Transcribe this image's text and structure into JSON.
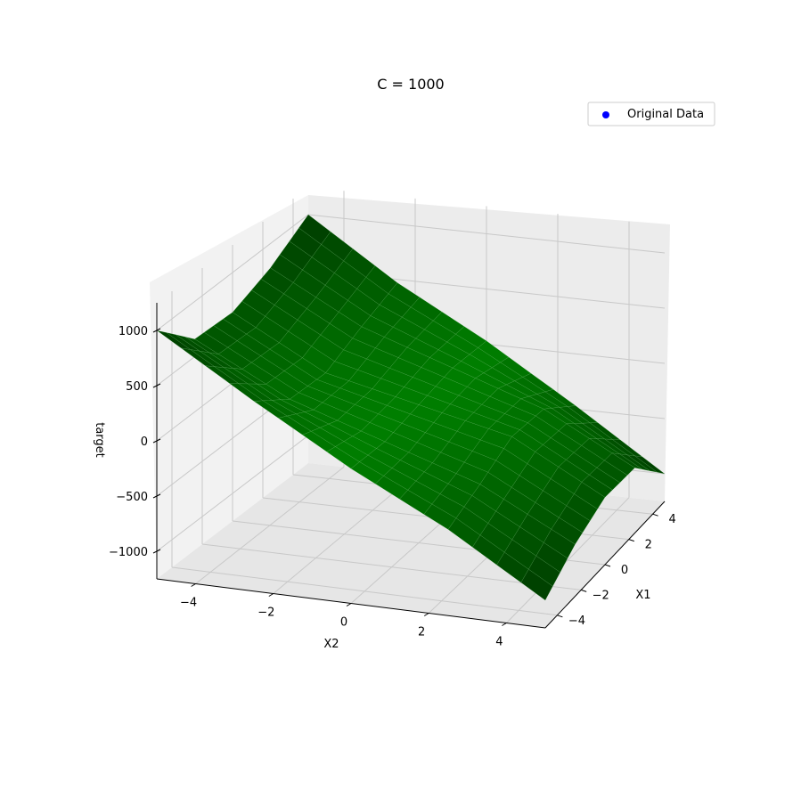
{
  "chart_data": {
    "type": "surface",
    "title": "C = 1000",
    "xlabel": "X1",
    "ylabel": "X2",
    "zlabel": "target",
    "x_ticks": [
      -4,
      -2,
      0,
      2,
      4
    ],
    "x_tick_labels": [
      "−4",
      "−2",
      "0",
      "2",
      "4"
    ],
    "y_ticks": [
      -4,
      -2,
      0,
      2,
      4
    ],
    "y_tick_labels": [
      "−4",
      "−2",
      "0",
      "2",
      "4"
    ],
    "z_ticks": [
      -1000,
      -500,
      0,
      500,
      1000
    ],
    "z_tick_labels": [
      "−1000",
      "−500",
      "0",
      "500",
      "1000"
    ],
    "xlim": [
      -5,
      5
    ],
    "ylim": [
      -5,
      5
    ],
    "zlim": [
      -1250,
      1250
    ],
    "grid": true,
    "legend": {
      "position": "top-right",
      "entries": [
        {
          "label": "Original Data",
          "marker": "scatter",
          "color": "#0000ff"
        }
      ]
    },
    "surface": {
      "color": "#0a7a0a",
      "x": [
        -5,
        -2.5,
        0,
        2.5,
        5
      ],
      "y": [
        -5,
        -2.5,
        0,
        2.5,
        5
      ],
      "z": [
        [
          1000,
          470,
          -30,
          -470,
          -1000
        ],
        [
          660,
          220,
          -60,
          -340,
          -780
        ],
        [
          640,
          190,
          0,
          -190,
          -640
        ],
        [
          780,
          340,
          60,
          -220,
          -660
        ],
        [
          1000,
          470,
          30,
          -470,
          -1000
        ]
      ]
    }
  }
}
